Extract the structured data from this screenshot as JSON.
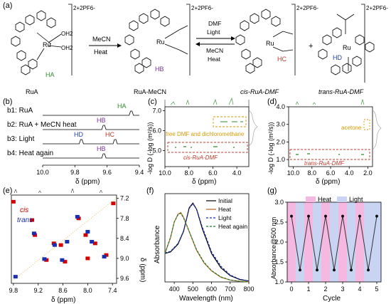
{
  "panel_labels": [
    "(a)",
    "(b)",
    "(c)",
    "(d)",
    "(e)",
    "(f)",
    "(g)"
  ],
  "scheme": {
    "charge_label": "2+2PF6-",
    "ru": "Ru",
    "oh2": "OH2",
    "ha": "HA",
    "hb": "HB",
    "hc": "HC",
    "hd": "HD",
    "compounds": [
      "RuA",
      "RuA-MeCN",
      "cis-RuA-DMF",
      "trans-RuA-DMF"
    ],
    "arrow1_top": "MeCN",
    "arrow1_bottom": "Heat",
    "arrow2_top": [
      "DMF",
      "Light"
    ],
    "arrow2_bottom": [
      "MeCN",
      "Heat"
    ],
    "plus": "+"
  },
  "panel_b": {
    "traces": [
      {
        "label": "b1: RuA",
        "peak_label": "HA",
        "peak_ppm": 9.45,
        "color": "#2e8b2e"
      },
      {
        "label": "b2: RuA + MeCN heat",
        "peak_label": "HB",
        "peak_ppm": 9.62,
        "color": "#7b2fa8"
      },
      {
        "label": "b3: Light",
        "peak_labels": [
          "HD",
          "HC"
        ],
        "peak_ppm": [
          9.76,
          9.55
        ],
        "colors": [
          "#1f3fbf",
          "#c0392b"
        ]
      },
      {
        "label": "b4: Heat again",
        "peak_label": "HB",
        "peak_ppm": 9.62,
        "color": "#7b2fa8"
      }
    ],
    "x_ticks": [
      "10.0",
      "9.8",
      "9.6",
      "9.4"
    ],
    "xlabel": "δ (ppm)"
  },
  "chart_data": [
    {
      "panel": "c",
      "type": "heatmap",
      "xlabel": "δ (ppm)",
      "ylabel": "-log D (-log (m²/s))",
      "xlim": [
        10.0,
        3.0
      ],
      "ylim": [
        4.2,
        7.2
      ],
      "x_ticks": [
        "10.0",
        "8.0",
        "6.0",
        "4.0"
      ],
      "y_ticks": [
        "7.0",
        "6.0",
        "5.0"
      ],
      "annotations": [
        "free DMF and dichloromethane",
        "cis-RuA-DMF"
      ]
    },
    {
      "panel": "d",
      "type": "heatmap",
      "xlabel": "δ (ppm)",
      "ylabel": "-log D (-log (m²/s))",
      "xlim": [
        10.5,
        1.5
      ],
      "ylim": [
        0.6,
        4.0
      ],
      "x_ticks": [
        "10.0",
        "8.0",
        "6.0",
        "4.0",
        "2.0"
      ],
      "y_ticks": [
        "4.0",
        "3.0",
        "2.0",
        "1.0"
      ],
      "annotations": [
        "acetone",
        "trans-RuA-DMF"
      ]
    },
    {
      "panel": "e",
      "type": "scatter",
      "xlabel": "δ (ppm)",
      "ylabel": "δ (ppm)",
      "xlim": [
        9.85,
        7.3
      ],
      "ylim": [
        7.1,
        9.75
      ],
      "x_ticks": [
        "9.8",
        "9.2",
        "8.6",
        "8.0",
        "7.4"
      ],
      "y_ticks": [
        "7.2",
        "7.8",
        "8.4",
        "9.0",
        "9.6"
      ],
      "legend": [
        "cis",
        "trans"
      ],
      "series": [
        {
          "name": "cis",
          "color": "#d40000",
          "points": [
            [
              9.8,
              7.3
            ],
            [
              9.35,
              7.85
            ],
            [
              9.28,
              8.3
            ],
            [
              8.82,
              8.55
            ],
            [
              8.65,
              8.6
            ],
            [
              8.22,
              7.8
            ],
            [
              8.05,
              8.3
            ],
            [
              7.82,
              8.55
            ],
            [
              8.0,
              9.0
            ],
            [
              9.0,
              9.05
            ],
            [
              7.55,
              8.9
            ],
            [
              7.38,
              7.35
            ],
            [
              8.55,
              9.1
            ]
          ]
        },
        {
          "name": "trans",
          "color": "#1a2fb0",
          "points": [
            [
              9.75,
              9.55
            ],
            [
              9.3,
              8.25
            ],
            [
              8.8,
              8.6
            ],
            [
              8.5,
              8.5
            ],
            [
              8.25,
              7.75
            ],
            [
              8.0,
              8.2
            ],
            [
              7.9,
              8.5
            ],
            [
              7.6,
              8.95
            ],
            [
              8.62,
              9.05
            ],
            [
              9.05,
              9.02
            ]
          ]
        }
      ]
    },
    {
      "panel": "f",
      "type": "line",
      "xlabel": "Wavelength (nm)",
      "ylabel": "Absorbance",
      "xlim": [
        350,
        800
      ],
      "x_ticks": [
        "400",
        "500",
        "600",
        "700",
        "800"
      ],
      "series": [
        {
          "name": "Initial",
          "color": "#000000",
          "dash": "solid",
          "x": [
            350,
            380,
            420,
            450,
            480,
            500,
            520,
            550,
            600,
            650,
            700,
            750,
            800
          ],
          "y": [
            0.9,
            0.95,
            1.2,
            1.6,
            2.35,
            2.5,
            2.3,
            1.7,
            0.9,
            0.45,
            0.2,
            0.08,
            0.03
          ]
        },
        {
          "name": "Heat",
          "color": "#b5651d",
          "dash": "solid",
          "x": [
            350,
            380,
            400,
            420,
            435,
            450,
            480,
            520,
            560,
            600,
            650,
            700,
            750,
            800
          ],
          "y": [
            0.9,
            1.4,
            1.9,
            2.15,
            2.2,
            2.05,
            1.6,
            1.0,
            0.6,
            0.35,
            0.15,
            0.06,
            0.02,
            0.0
          ]
        },
        {
          "name": "Light",
          "color": "#1a2fb0",
          "dash": "dash",
          "x": [
            350,
            380,
            420,
            450,
            480,
            500,
            520,
            550,
            600,
            650,
            700,
            750,
            800
          ],
          "y": [
            0.92,
            0.97,
            1.22,
            1.62,
            2.33,
            2.48,
            2.3,
            1.75,
            0.95,
            0.5,
            0.22,
            0.09,
            0.03
          ]
        },
        {
          "name": "Heat again",
          "color": "#1b7a2e",
          "dash": "dash",
          "x": [
            350,
            380,
            400,
            420,
            435,
            450,
            480,
            520,
            560,
            600,
            650,
            700,
            750,
            800
          ],
          "y": [
            0.9,
            1.42,
            1.9,
            2.13,
            2.18,
            2.03,
            1.6,
            1.02,
            0.62,
            0.36,
            0.16,
            0.06,
            0.02,
            0.0
          ]
        }
      ]
    },
    {
      "panel": "g",
      "type": "line",
      "xlabel": "Cycle",
      "ylabel": "Absorbance@500 nm",
      "ylim": [
        1.0,
        3.0
      ],
      "x_ticks": [
        "0",
        "1",
        "2",
        "3",
        "4",
        "5"
      ],
      "y_ticks": [
        "1.0",
        "1.5",
        "2.0",
        "2.5",
        "3.0"
      ],
      "legend": [
        "Heat",
        "Light"
      ],
      "legend_colors": [
        "#f5b8e0",
        "#c8d4f2"
      ],
      "x": [
        0,
        0.5,
        1,
        1.5,
        2,
        2.5,
        3,
        3.5,
        4,
        4.5,
        5
      ],
      "values": [
        2.65,
        1.3,
        2.65,
        1.3,
        2.65,
        1.3,
        2.65,
        1.3,
        2.65,
        1.3,
        2.65
      ]
    }
  ]
}
